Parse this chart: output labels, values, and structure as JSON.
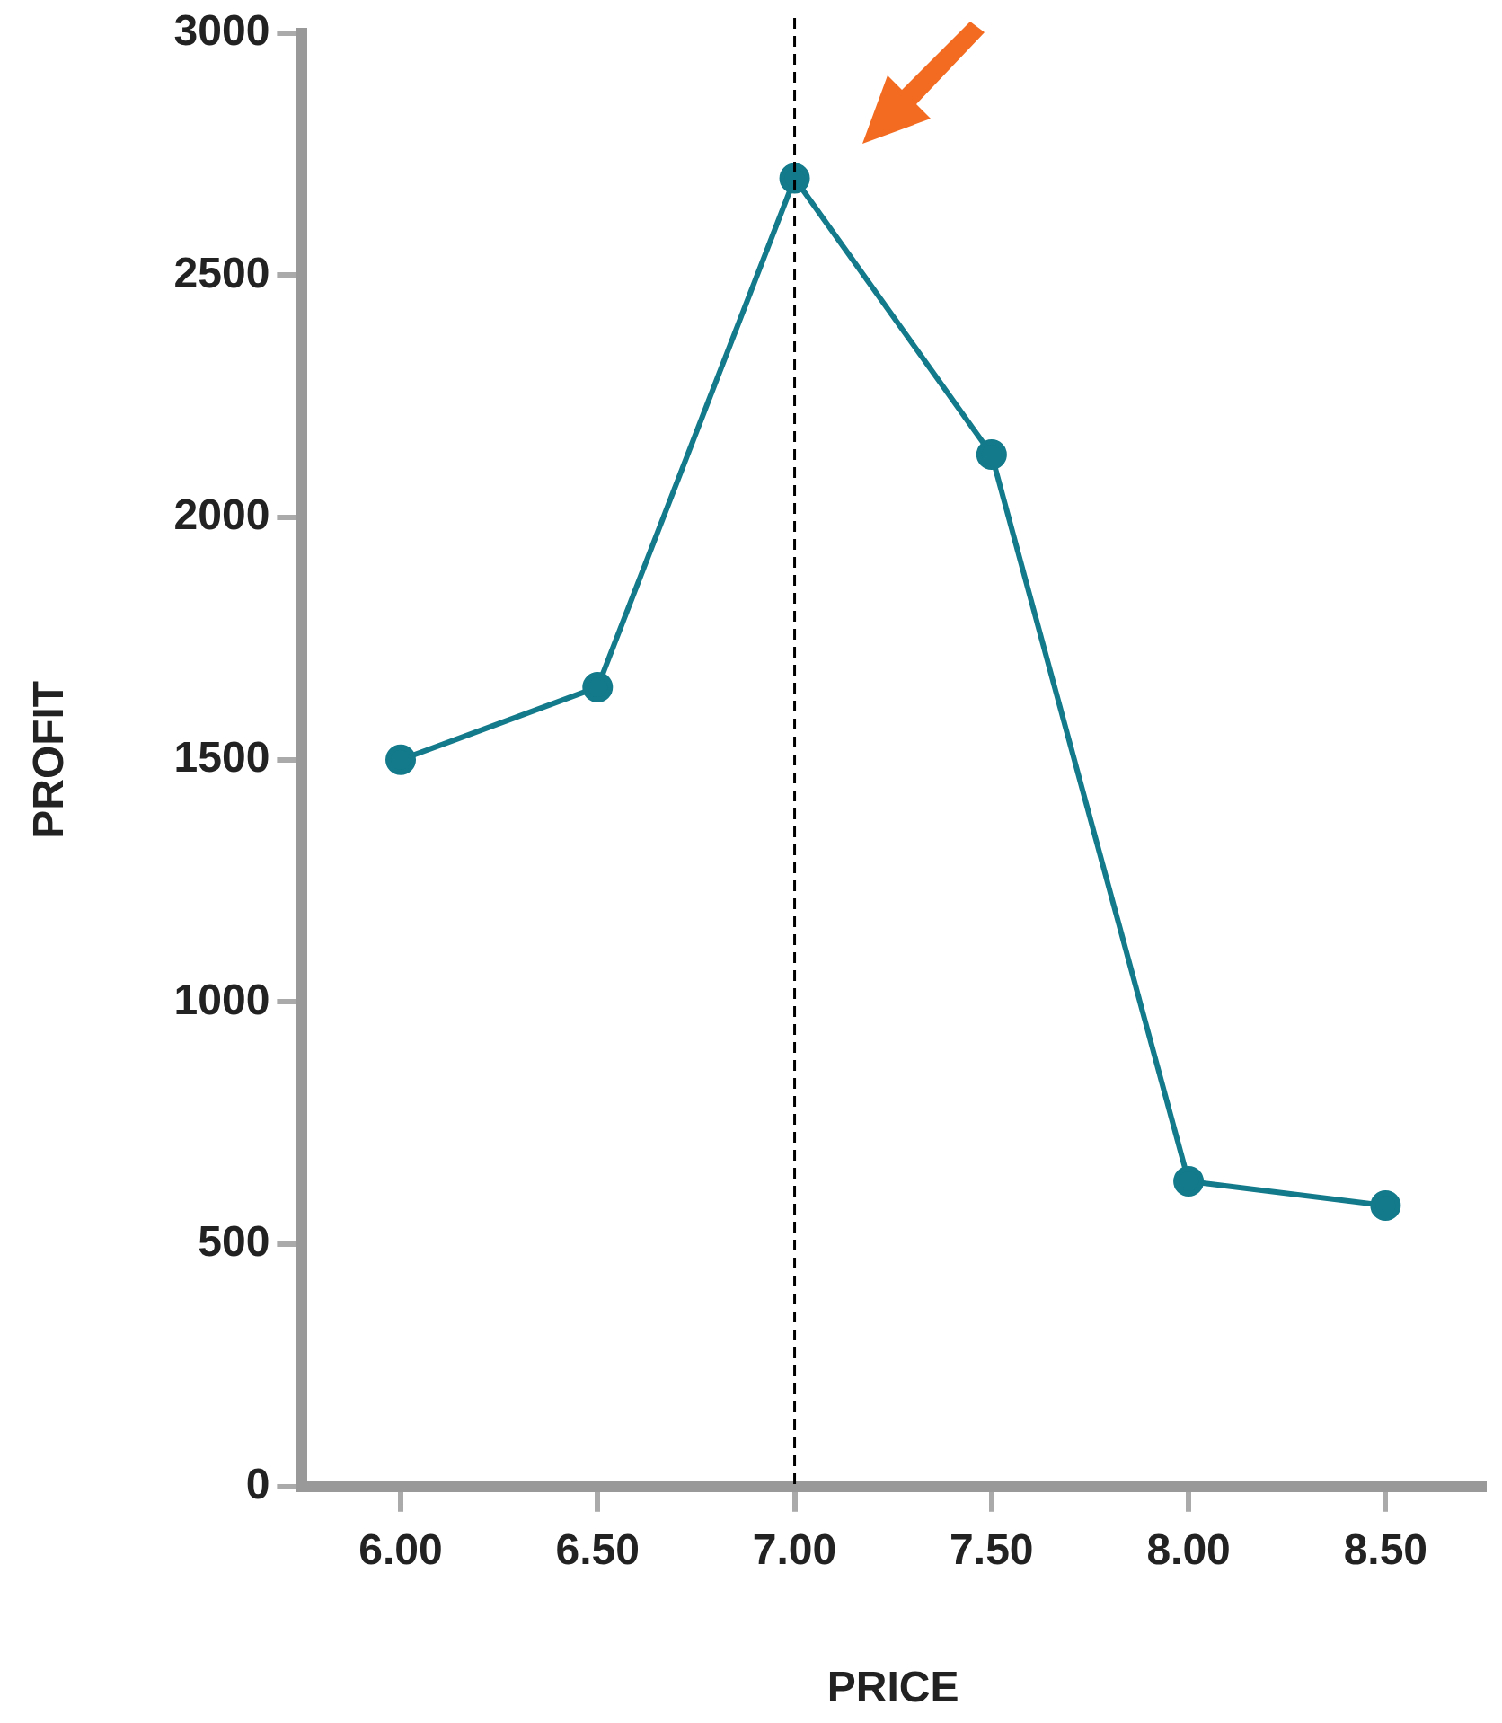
{
  "chart_data": {
    "type": "line",
    "xlabel": "PRICE",
    "ylabel": "PROFIT",
    "x": [
      6.0,
      6.5,
      7.0,
      7.5,
      8.0,
      8.5
    ],
    "series": [
      {
        "color": "#127a8a",
        "values": [
          1500,
          1650,
          2700,
          2130,
          630,
          580
        ]
      }
    ],
    "xlim": [
      5.75,
      8.75
    ],
    "xticks": [
      {
        "value": 6,
        "label": "6.00"
      },
      {
        "value": 6.5,
        "label": "6.50"
      },
      {
        "value": 7,
        "label": "7.00"
      },
      {
        "value": 7.5,
        "label": "7.50"
      },
      {
        "value": 8,
        "label": "8.00"
      },
      {
        "value": 8.5,
        "label": "8.50"
      }
    ],
    "ylim": [
      0,
      3000
    ],
    "yticks": [
      0,
      500,
      1000,
      1500,
      2000,
      2500,
      3000
    ],
    "ref_lines": [
      {
        "axis": "x",
        "value": 7,
        "color": "#000000",
        "line_style": "dashed"
      }
    ],
    "grid": false,
    "legend": false,
    "marker": "circle",
    "line_style": "solid"
  }
}
